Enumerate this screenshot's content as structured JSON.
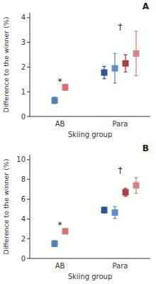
{
  "chart_data": [
    {
      "type": "scatter",
      "title": "A",
      "x_label": "Skiing group",
      "y_label": "Difference to the winner (%)",
      "categories": [
        "AB",
        "Para"
      ],
      "ylim": [
        0,
        4.2
      ],
      "yticks": [
        0,
        1,
        2,
        3,
        4
      ],
      "series": [
        {
          "colors": [
            "#4f80b8",
            "#2b5a93"
          ],
          "marker": "square",
          "values": [
            0.65,
            1.78
          ],
          "errors": [
            0.13,
            0.25
          ]
        },
        {
          "color": "#5d90c8",
          "marker": "square",
          "values": [
            null,
            1.95
          ],
          "errors": [
            null,
            0.6
          ]
        },
        {
          "colors": [
            "#d9726f",
            "#a8413f"
          ],
          "marker": "square",
          "values": [
            1.18,
            2.15
          ],
          "errors": [
            0.12,
            0.35
          ]
        },
        {
          "color": "#d08684",
          "marker": "square",
          "values": [
            null,
            2.55
          ],
          "errors": [
            null,
            0.9
          ]
        }
      ],
      "annotations": [
        {
          "text": "*",
          "x": "AB",
          "y": 1.42
        },
        {
          "text": "†",
          "x": "Para",
          "y": 3.62
        }
      ]
    },
    {
      "type": "scatter",
      "title": "B",
      "x_label": "Skiing group",
      "y_label": "Difference to the winner (%)",
      "categories": [
        "AB",
        "Para"
      ],
      "ylim": [
        0,
        10.5
      ],
      "yticks": [
        0,
        2,
        4,
        6,
        8,
        10
      ],
      "series": [
        {
          "colors": [
            "#4f80b8",
            "#2b5a93"
          ],
          "marker": "square",
          "values": [
            1.5,
            4.9
          ],
          "errors": [
            0.3,
            0.3
          ]
        },
        {
          "color": "#5d90c8",
          "marker": "square",
          "values": [
            null,
            4.65
          ],
          "errors": [
            null,
            0.6
          ]
        },
        {
          "colors": [
            "#d9726f",
            "#a8413f"
          ],
          "marker": "square",
          "values": [
            2.75,
            6.7
          ],
          "errors": [
            0.2,
            0.4
          ]
        },
        {
          "color": "#d08684",
          "marker": "square",
          "values": [
            null,
            7.4
          ],
          "errors": [
            null,
            0.8
          ]
        }
      ],
      "annotations": [
        {
          "text": "*",
          "x": "AB",
          "y": 3.4
        },
        {
          "text": "†",
          "x": "Para",
          "y": 8.95
        }
      ]
    }
  ]
}
